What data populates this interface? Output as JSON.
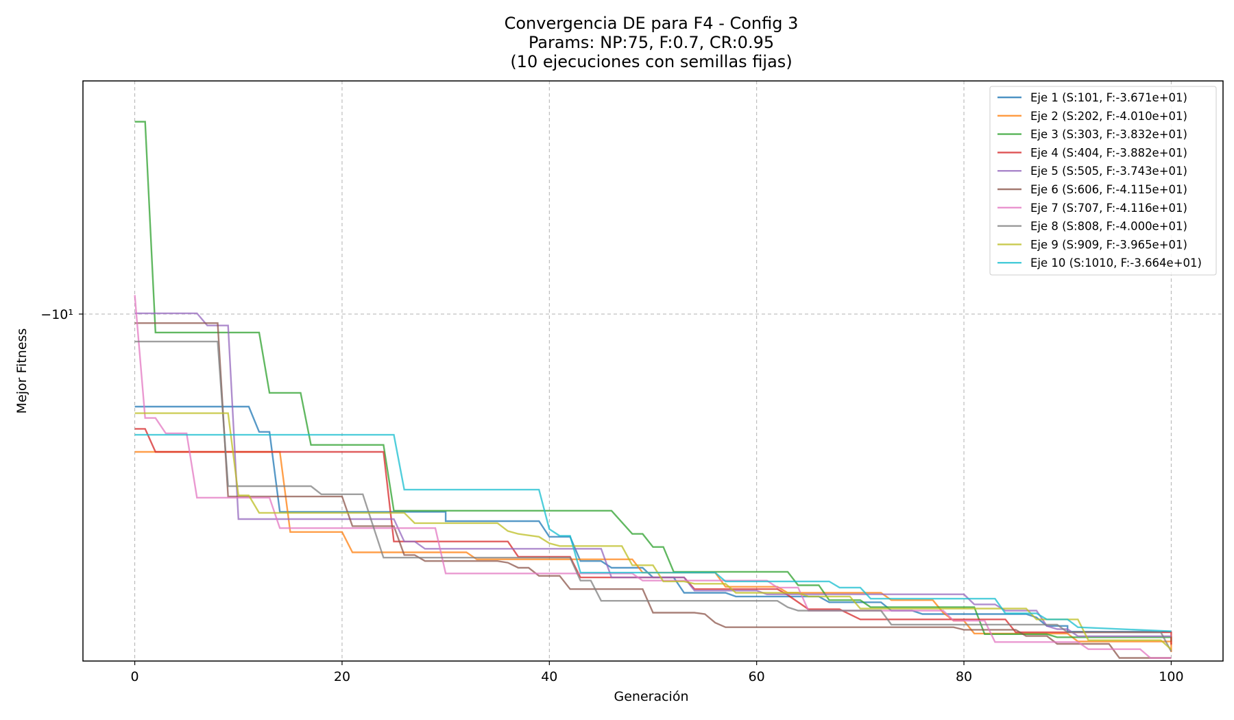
{
  "chart_data": {
    "type": "line",
    "title_lines": [
      "Convergencia DE para F4 - Config 3",
      "Params: NP:75, F:0.7, CR:0.95",
      "(10 ejecuciones con semillas fijas)"
    ],
    "xlabel": "Generación",
    "ylabel": "Mejor Fitness",
    "yscale": "symlog",
    "xlim": [
      -5,
      105
    ],
    "ylim": [
      -41.7,
      -3.35
    ],
    "x_ticks": [
      0,
      20,
      40,
      60,
      80,
      100
    ],
    "y_tick_label": "−10¹",
    "grid": true,
    "legend_position": "top-right",
    "series": [
      {
        "name": "Eje 1 (S:101, F:-3.671e+01)",
        "color": "#1f77b4",
        "points": [
          [
            0,
            -13.8
          ],
          [
            11,
            -13.8
          ],
          [
            12,
            -15.4
          ],
          [
            13,
            -15.4
          ],
          [
            14,
            -21.8
          ],
          [
            30,
            -21.8
          ],
          [
            30,
            -22.7
          ],
          [
            39,
            -22.7
          ],
          [
            40,
            -24.3
          ],
          [
            41,
            -24.3
          ],
          [
            42,
            -24.3
          ],
          [
            43,
            -27.0
          ],
          [
            45,
            -27.0
          ],
          [
            46,
            -27.8
          ],
          [
            49,
            -27.8
          ],
          [
            50,
            -29.0
          ],
          [
            52,
            -29.0
          ],
          [
            53,
            -31.0
          ],
          [
            57,
            -31.0
          ],
          [
            58,
            -31.5
          ],
          [
            66,
            -31.5
          ],
          [
            67,
            -32.3
          ],
          [
            72,
            -32.3
          ],
          [
            73,
            -33.5
          ],
          [
            75,
            -33.5
          ],
          [
            76,
            -34.0
          ],
          [
            86,
            -34.0
          ],
          [
            87,
            -34.5
          ],
          [
            88,
            -35.8
          ],
          [
            90,
            -35.8
          ],
          [
            90,
            -36.71
          ],
          [
            100,
            -36.71
          ]
        ]
      },
      {
        "name": "Eje 2 (S:202, F:-4.010e+01)",
        "color": "#ff7f0e",
        "points": [
          [
            0,
            -16.8
          ],
          [
            14,
            -16.8
          ],
          [
            15,
            -23.8
          ],
          [
            20,
            -23.8
          ],
          [
            21,
            -26.0
          ],
          [
            32,
            -26.0
          ],
          [
            33,
            -26.8
          ],
          [
            48,
            -26.8
          ],
          [
            49,
            -28.4
          ],
          [
            56,
            -28.4
          ],
          [
            57,
            -30.2
          ],
          [
            62,
            -30.2
          ],
          [
            63,
            -31.0
          ],
          [
            72,
            -31.0
          ],
          [
            73,
            -32.0
          ],
          [
            77,
            -32.0
          ],
          [
            78,
            -33.8
          ],
          [
            79,
            -35.0
          ],
          [
            80,
            -35.0
          ],
          [
            81,
            -37.0
          ],
          [
            90,
            -37.0
          ],
          [
            91,
            -38.3
          ],
          [
            100,
            -38.3
          ],
          [
            100,
            -40.1
          ]
        ]
      },
      {
        "name": "Eje 3 (S:303, F:-3.832e+01)",
        "color": "#2ca02c",
        "points": [
          [
            0,
            -4.0
          ],
          [
            1,
            -4.0
          ],
          [
            2,
            -10.0
          ],
          [
            12,
            -10.0
          ],
          [
            13,
            -13.0
          ],
          [
            16,
            -13.0
          ],
          [
            17,
            -16.3
          ],
          [
            24,
            -16.3
          ],
          [
            25,
            -21.7
          ],
          [
            46,
            -21.7
          ],
          [
            48,
            -24.0
          ],
          [
            49,
            -24.0
          ],
          [
            50,
            -25.4
          ],
          [
            51,
            -25.4
          ],
          [
            52,
            -28.3
          ],
          [
            63,
            -28.3
          ],
          [
            64,
            -30.0
          ],
          [
            66,
            -30.0
          ],
          [
            67,
            -32.0
          ],
          [
            70,
            -32.0
          ],
          [
            71,
            -33.0
          ],
          [
            81,
            -33.0
          ],
          [
            82,
            -37.1
          ],
          [
            88,
            -37.1
          ],
          [
            89,
            -37.6
          ],
          [
            100,
            -37.6
          ],
          [
            100,
            -38.32
          ]
        ]
      },
      {
        "name": "Eje 4 (S:404, F:-3.882e+01)",
        "color": "#d62728",
        "points": [
          [
            0,
            -15.2
          ],
          [
            1,
            -15.2
          ],
          [
            2,
            -16.8
          ],
          [
            24,
            -16.8
          ],
          [
            25,
            -24.8
          ],
          [
            36,
            -24.8
          ],
          [
            37,
            -26.5
          ],
          [
            42,
            -26.5
          ],
          [
            43,
            -29.0
          ],
          [
            53,
            -29.0
          ],
          [
            54,
            -30.5
          ],
          [
            62,
            -30.5
          ],
          [
            63,
            -31.3
          ],
          [
            65,
            -33.3
          ],
          [
            68,
            -33.3
          ],
          [
            70,
            -34.8
          ],
          [
            84,
            -34.8
          ],
          [
            85,
            -36.8
          ],
          [
            100,
            -36.8
          ],
          [
            100,
            -38.82
          ]
        ]
      },
      {
        "name": "Eje 5 (S:505, F:-3.743e+01)",
        "color": "#9467bd",
        "points": [
          [
            0,
            -9.2
          ],
          [
            6,
            -9.2
          ],
          [
            7,
            -9.7
          ],
          [
            9,
            -9.7
          ],
          [
            10,
            -22.5
          ],
          [
            25,
            -22.5
          ],
          [
            26,
            -24.8
          ],
          [
            27,
            -24.8
          ],
          [
            28,
            -25.6
          ],
          [
            45,
            -25.6
          ],
          [
            46,
            -29.0
          ],
          [
            53,
            -29.0
          ],
          [
            54,
            -30.7
          ],
          [
            60,
            -30.7
          ],
          [
            61,
            -31.2
          ],
          [
            80,
            -31.2
          ],
          [
            81,
            -32.6
          ],
          [
            83,
            -32.6
          ],
          [
            84,
            -33.5
          ],
          [
            87,
            -33.5
          ],
          [
            88,
            -35.8
          ],
          [
            89,
            -36.3
          ],
          [
            90,
            -36.3
          ],
          [
            91,
            -37.43
          ],
          [
            100,
            -37.43
          ]
        ]
      },
      {
        "name": "Eje 6 (S:606, F:-4.115e+01)",
        "color": "#8c564b",
        "points": [
          [
            0,
            -9.6
          ],
          [
            8,
            -9.6
          ],
          [
            9,
            -20.4
          ],
          [
            20,
            -20.4
          ],
          [
            21,
            -23.2
          ],
          [
            25,
            -23.2
          ],
          [
            26,
            -26.3
          ],
          [
            27,
            -26.3
          ],
          [
            28,
            -27.0
          ],
          [
            35,
            -27.0
          ],
          [
            36,
            -27.2
          ],
          [
            37,
            -27.8
          ],
          [
            38,
            -27.8
          ],
          [
            39,
            -28.8
          ],
          [
            40,
            -28.8
          ],
          [
            41,
            -28.8
          ],
          [
            42,
            -30.5
          ],
          [
            49,
            -30.5
          ],
          [
            50,
            -33.8
          ],
          [
            54,
            -33.8
          ],
          [
            55,
            -34.0
          ],
          [
            56,
            -35.3
          ],
          [
            57,
            -36.0
          ],
          [
            79,
            -36.0
          ],
          [
            80,
            -36.4
          ],
          [
            85,
            -36.4
          ],
          [
            86,
            -37.4
          ],
          [
            88,
            -37.4
          ],
          [
            89,
            -38.7
          ],
          [
            94,
            -38.7
          ],
          [
            95,
            -41.15
          ],
          [
            100,
            -41.15
          ]
        ]
      },
      {
        "name": "Eje 7 (S:707, F:-4.116e+01)",
        "color": "#e377c2",
        "points": [
          [
            0,
            -8.5
          ],
          [
            1,
            -14.5
          ],
          [
            2,
            -14.5
          ],
          [
            3,
            -15.5
          ],
          [
            5,
            -15.5
          ],
          [
            6,
            -20.5
          ],
          [
            13,
            -20.5
          ],
          [
            14,
            -23.4
          ],
          [
            29,
            -23.4
          ],
          [
            30,
            -28.5
          ],
          [
            48,
            -28.5
          ],
          [
            49,
            -29.4
          ],
          [
            61,
            -29.4
          ],
          [
            62,
            -30.3
          ],
          [
            64,
            -30.3
          ],
          [
            65,
            -33.5
          ],
          [
            78,
            -33.5
          ],
          [
            79,
            -35.0
          ],
          [
            82,
            -35.0
          ],
          [
            83,
            -38.4
          ],
          [
            91,
            -38.4
          ],
          [
            92,
            -39.6
          ],
          [
            97,
            -39.6
          ],
          [
            98,
            -41.16
          ],
          [
            100,
            -41.16
          ]
        ]
      },
      {
        "name": "Eje 8 (S:808, F:-4.000e+01)",
        "color": "#7f7f7f",
        "points": [
          [
            0,
            -10.4
          ],
          [
            8,
            -10.4
          ],
          [
            9,
            -19.5
          ],
          [
            17,
            -19.5
          ],
          [
            18,
            -20.2
          ],
          [
            22,
            -20.2
          ],
          [
            23,
            -23.2
          ],
          [
            24,
            -26.6
          ],
          [
            42,
            -26.6
          ],
          [
            43,
            -29.4
          ],
          [
            44,
            -29.4
          ],
          [
            45,
            -32.1
          ],
          [
            62,
            -32.1
          ],
          [
            63,
            -33.0
          ],
          [
            64,
            -33.5
          ],
          [
            72,
            -33.5
          ],
          [
            73,
            -35.6
          ],
          [
            89,
            -35.6
          ],
          [
            90,
            -36.8
          ],
          [
            99,
            -36.8
          ],
          [
            100,
            -40.0
          ]
        ]
      },
      {
        "name": "Eje 9 (S:909, F:-3.965e+01)",
        "color": "#bcbd22",
        "points": [
          [
            0,
            -14.2
          ],
          [
            9,
            -14.2
          ],
          [
            10,
            -20.3
          ],
          [
            11,
            -20.3
          ],
          [
            12,
            -21.9
          ],
          [
            26,
            -21.9
          ],
          [
            27,
            -22.9
          ],
          [
            35,
            -22.9
          ],
          [
            36,
            -23.7
          ],
          [
            37,
            -24.0
          ],
          [
            39,
            -24.3
          ],
          [
            40,
            -25.0
          ],
          [
            41,
            -25.3
          ],
          [
            47,
            -25.3
          ],
          [
            48,
            -27.5
          ],
          [
            50,
            -27.5
          ],
          [
            51,
            -29.5
          ],
          [
            53,
            -29.5
          ],
          [
            54,
            -29.8
          ],
          [
            57,
            -29.8
          ],
          [
            58,
            -31.0
          ],
          [
            64,
            -31.0
          ],
          [
            65,
            -31.5
          ],
          [
            69,
            -31.5
          ],
          [
            70,
            -33.2
          ],
          [
            86,
            -33.2
          ],
          [
            87,
            -34.8
          ],
          [
            91,
            -34.8
          ],
          [
            92,
            -38.1
          ],
          [
            99,
            -38.1
          ],
          [
            100,
            -39.65
          ]
        ]
      },
      {
        "name": "Eje 10 (S:1010, F:-3.664e+01)",
        "color": "#17becf",
        "points": [
          [
            0,
            -15.6
          ],
          [
            25,
            -15.6
          ],
          [
            26,
            -19.8
          ],
          [
            39,
            -19.8
          ],
          [
            40,
            -23.5
          ],
          [
            41,
            -24.2
          ],
          [
            42,
            -24.2
          ],
          [
            43,
            -28.4
          ],
          [
            56,
            -28.4
          ],
          [
            57,
            -29.5
          ],
          [
            67,
            -29.5
          ],
          [
            68,
            -30.3
          ],
          [
            70,
            -30.3
          ],
          [
            71,
            -31.8
          ],
          [
            83,
            -31.8
          ],
          [
            84,
            -33.9
          ],
          [
            87,
            -33.9
          ],
          [
            88,
            -34.8
          ],
          [
            90,
            -34.8
          ],
          [
            91,
            -36.0
          ],
          [
            100,
            -36.64
          ]
        ]
      }
    ]
  }
}
